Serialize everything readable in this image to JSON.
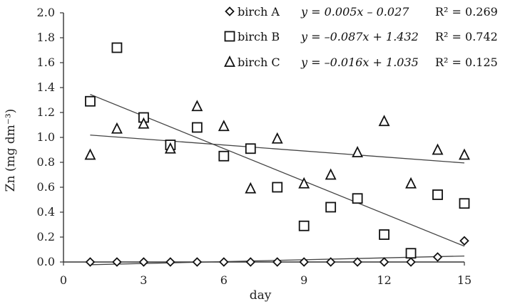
{
  "chart_data": {
    "type": "scatter",
    "xlabel": "day",
    "ylabel": "Zn (mg dm⁻³)",
    "xlim": [
      0,
      15
    ],
    "ylim": [
      0,
      2.0
    ],
    "x_ticks": [
      0,
      3,
      6,
      9,
      12,
      15
    ],
    "y_ticks": [
      "0.0",
      "0.2",
      "0.4",
      "0.6",
      "0.8",
      "1.0",
      "1.2",
      "1.4",
      "1.6",
      "1.8",
      "2.0"
    ],
    "grid": false,
    "legend_position": "top-right",
    "series": [
      {
        "name": "birch A",
        "marker": "diamond",
        "equation": "y = 0.005x – 0.027",
        "r2": "R² = 0.269",
        "x": [
          1,
          2,
          3,
          4,
          5,
          6,
          7,
          8,
          9,
          10,
          11,
          12,
          13,
          14,
          15
        ],
        "y": [
          0.0,
          0.0,
          0.0,
          0.0,
          0.0,
          0.0,
          0.0,
          0.0,
          0.0,
          0.0,
          0.0,
          0.0,
          0.0,
          0.04,
          0.17
        ],
        "trend": {
          "slope": 0.005,
          "intercept": -0.027
        }
      },
      {
        "name": "birch B",
        "marker": "square",
        "equation": "y = –0.087x + 1.432",
        "r2": "R² = 0.742",
        "x": [
          1,
          2,
          3,
          4,
          5,
          6,
          7,
          8,
          9,
          10,
          11,
          12,
          13,
          14,
          15
        ],
        "y": [
          1.29,
          1.72,
          1.16,
          0.94,
          1.08,
          0.85,
          0.91,
          0.6,
          0.29,
          0.44,
          0.51,
          0.22,
          0.07,
          0.54,
          0.47
        ],
        "trend": {
          "slope": -0.087,
          "intercept": 1.432
        }
      },
      {
        "name": "birch C",
        "marker": "triangle",
        "equation": "y = –0.016x + 1.035",
        "r2": "R² = 0.125",
        "x": [
          1,
          2,
          3,
          4,
          5,
          6,
          7,
          8,
          9,
          10,
          11,
          12,
          13,
          14,
          15
        ],
        "y": [
          0.86,
          1.07,
          1.11,
          0.91,
          1.25,
          1.09,
          0.59,
          0.99,
          0.63,
          0.7,
          0.88,
          1.13,
          0.63,
          0.9,
          0.86
        ],
        "trend": {
          "slope": -0.016,
          "intercept": 1.035
        }
      }
    ]
  }
}
